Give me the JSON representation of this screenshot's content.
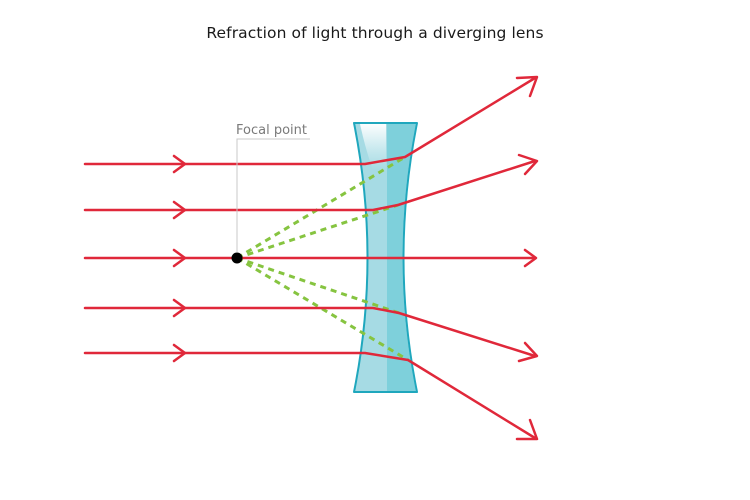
{
  "title": "Refraction of light through a diverging lens",
  "focal_label": "Focal point",
  "colors": {
    "ray": "#e0283a",
    "virtual_ray": "#86c440",
    "lens_fill": "#a6dbe4",
    "lens_fill_dark": "#5cc6d4",
    "lens_edge": "#1fa7bd",
    "lens_highlight": "#ffffff",
    "focal_dot": "#000000",
    "label": "#7a7a7a",
    "leader": "#c8c8c8"
  },
  "icons": {
    "ray_arrow": "arrow-right-icon",
    "focal_marker": "filled-circle-icon"
  }
}
